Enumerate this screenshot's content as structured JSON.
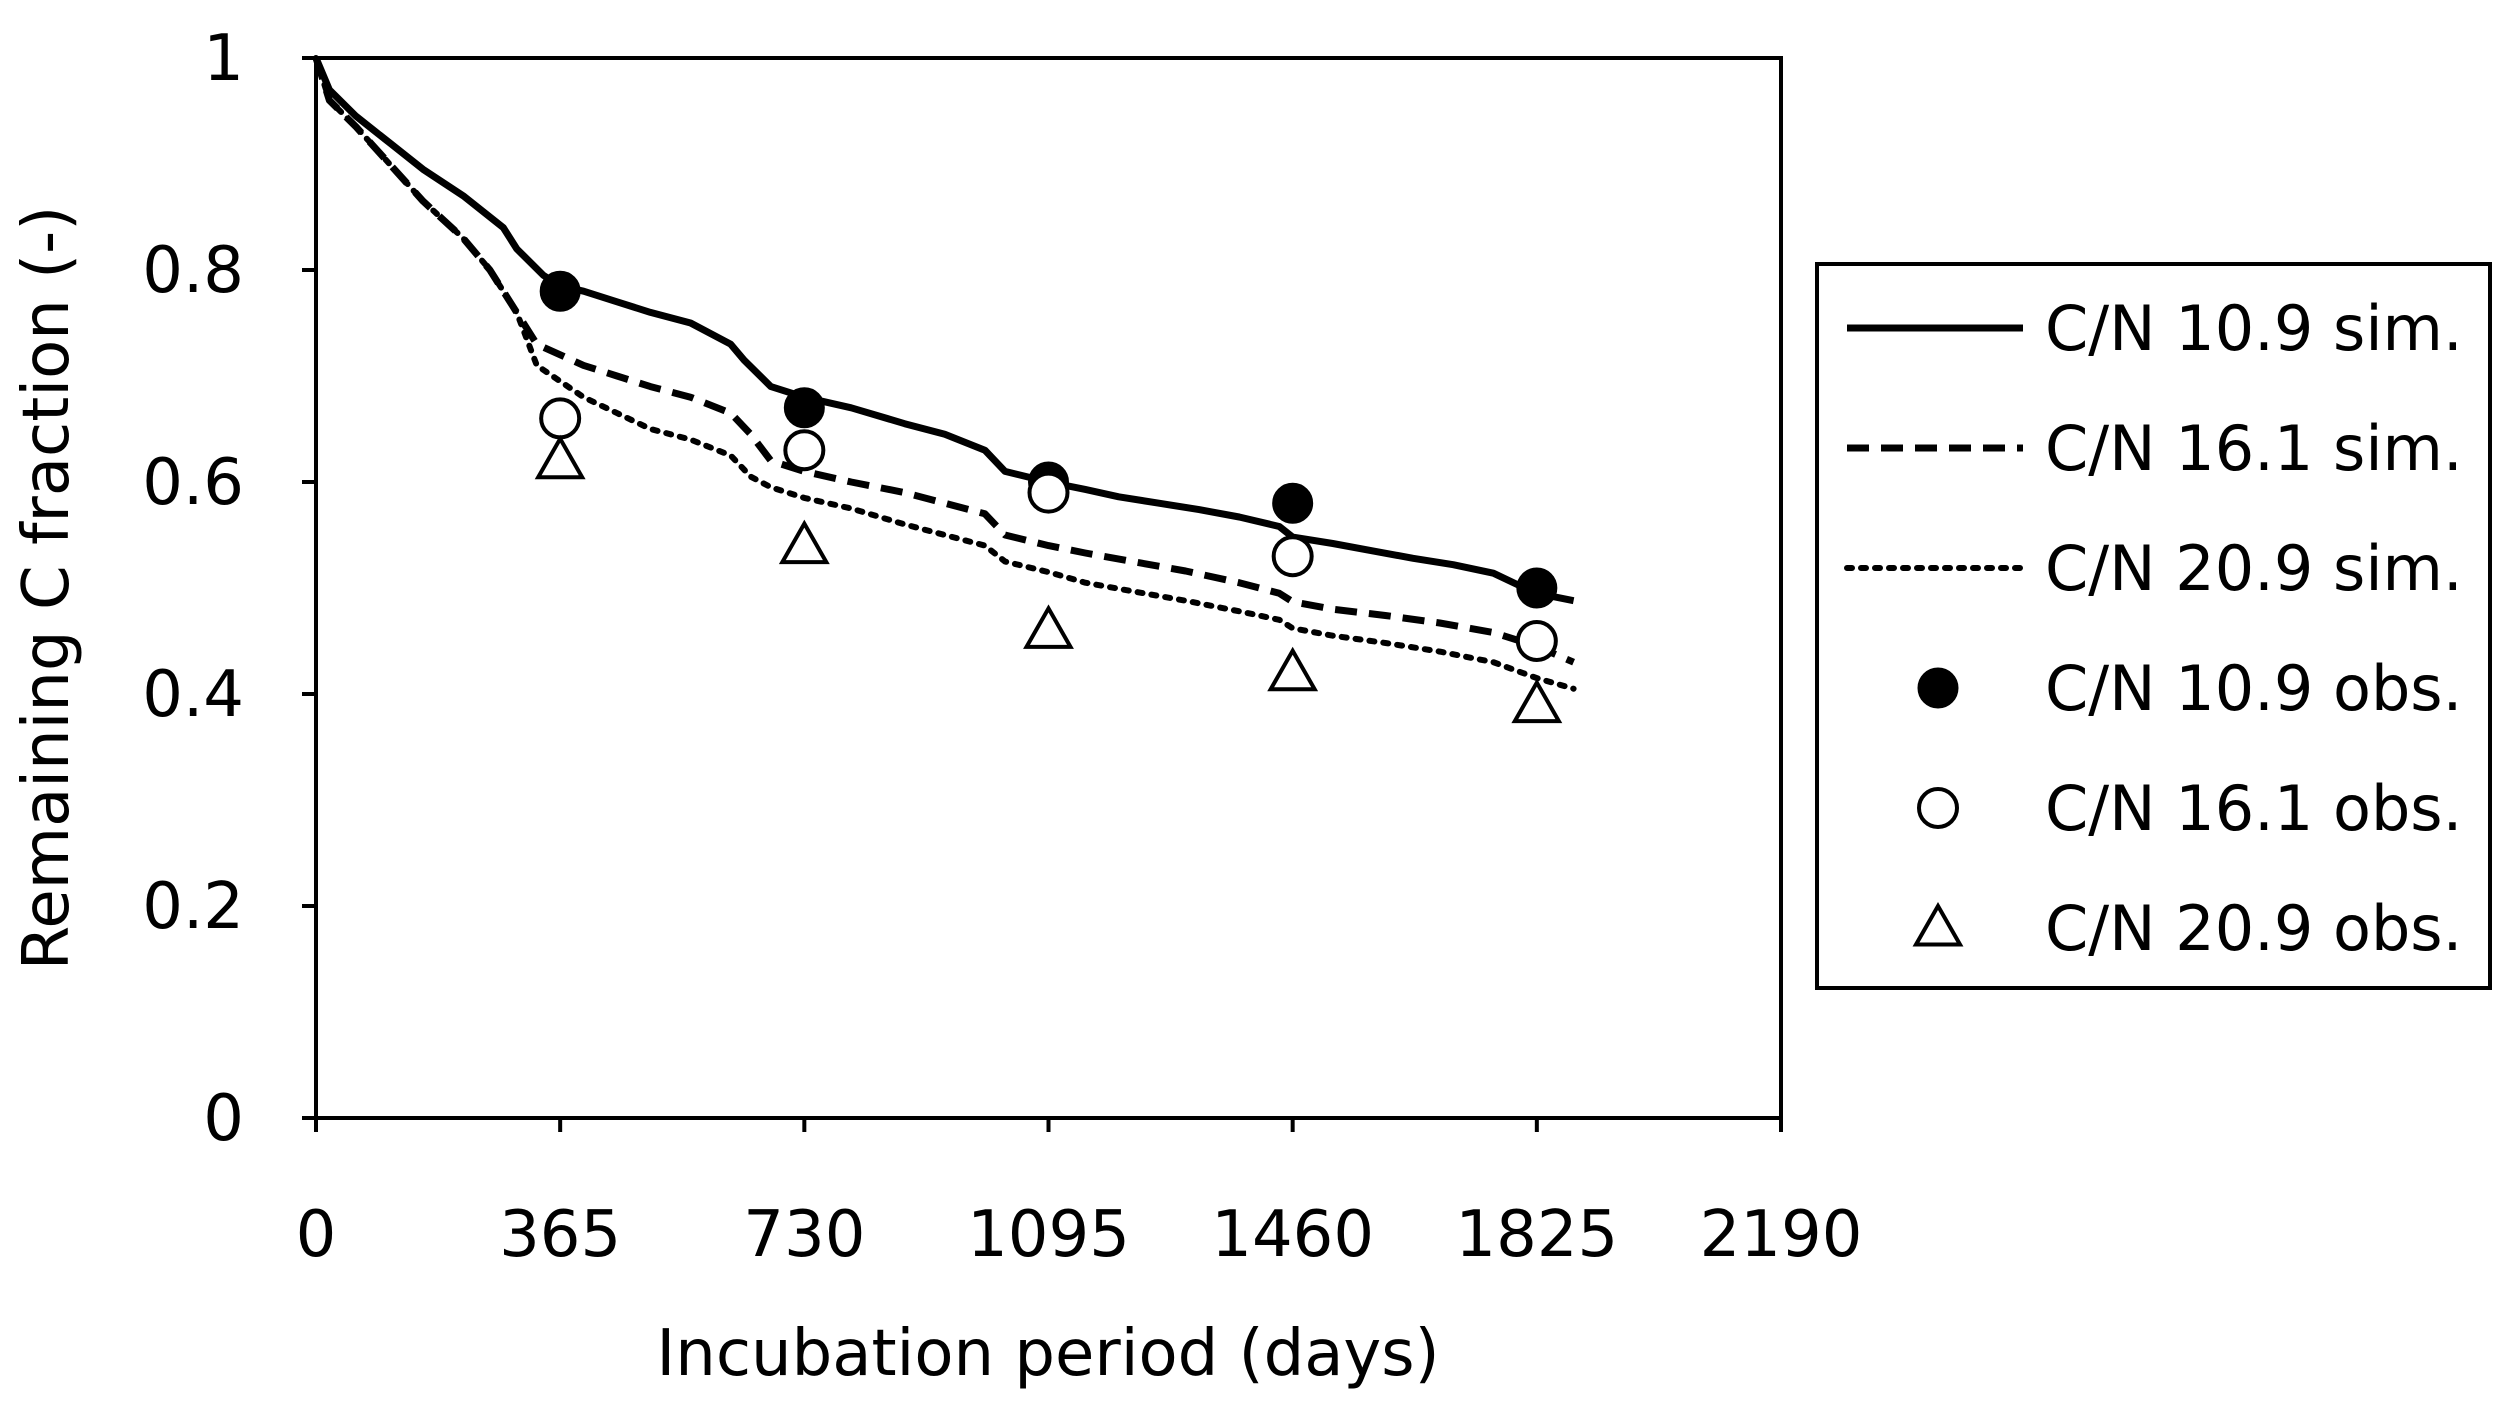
{
  "chart_data": {
    "type": "line",
    "title": "",
    "xlabel": "Incubation period (days)",
    "ylabel": "Remaining C fraction (-)",
    "xlim": [
      0,
      2190
    ],
    "ylim": [
      0,
      1
    ],
    "x_ticks": [
      "0",
      "365",
      "730",
      "1095",
      "1460",
      "1825",
      "2190"
    ],
    "y_ticks": [
      "0",
      "0.2",
      "0.4",
      "0.6",
      "0.8",
      "1"
    ],
    "grid": false,
    "legend_position": "right",
    "series": [
      {
        "name": "C/N 10.9 sim.",
        "kind": "line",
        "style": "solid",
        "x": [
          0,
          20,
          60,
          110,
          160,
          220,
          280,
          300,
          340,
          365,
          400,
          450,
          500,
          560,
          620,
          640,
          680,
          730,
          800,
          880,
          940,
          1000,
          1030,
          1095,
          1150,
          1200,
          1260,
          1320,
          1380,
          1440,
          1460,
          1520,
          1580,
          1640,
          1700,
          1760,
          1800,
          1825,
          1880
        ],
        "y": [
          1.0,
          0.97,
          0.945,
          0.92,
          0.895,
          0.87,
          0.84,
          0.82,
          0.795,
          0.785,
          0.78,
          0.77,
          0.76,
          0.75,
          0.73,
          0.715,
          0.69,
          0.68,
          0.67,
          0.655,
          0.645,
          0.63,
          0.61,
          0.6,
          0.593,
          0.586,
          0.58,
          0.574,
          0.567,
          0.558,
          0.548,
          0.542,
          0.535,
          0.528,
          0.522,
          0.514,
          0.502,
          0.495,
          0.488
        ]
      },
      {
        "name": "C/N 16.1 sim.",
        "kind": "line",
        "style": "dashed",
        "x": [
          0,
          20,
          60,
          110,
          160,
          220,
          260,
          300,
          330,
          365,
          400,
          450,
          500,
          560,
          620,
          650,
          680,
          730,
          800,
          880,
          940,
          1000,
          1030,
          1095,
          1150,
          1220,
          1300,
          1380,
          1440,
          1460,
          1520,
          1600,
          1680,
          1760,
          1825,
          1880
        ],
        "y": [
          1.0,
          0.96,
          0.935,
          0.9,
          0.865,
          0.83,
          0.8,
          0.76,
          0.73,
          0.72,
          0.71,
          0.7,
          0.69,
          0.68,
          0.665,
          0.645,
          0.62,
          0.61,
          0.6,
          0.59,
          0.58,
          0.57,
          0.55,
          0.54,
          0.533,
          0.525,
          0.516,
          0.505,
          0.495,
          0.487,
          0.48,
          0.474,
          0.467,
          0.458,
          0.445,
          0.43
        ]
      },
      {
        "name": "C/N 20.9 sim.",
        "kind": "line",
        "style": "dotted",
        "x": [
          0,
          20,
          60,
          110,
          160,
          220,
          260,
          300,
          330,
          365,
          400,
          450,
          500,
          560,
          620,
          650,
          680,
          730,
          800,
          880,
          940,
          1000,
          1030,
          1095,
          1150,
          1220,
          1300,
          1380,
          1440,
          1460,
          1520,
          1600,
          1680,
          1760,
          1825,
          1880
        ],
        "y": [
          1.0,
          0.96,
          0.935,
          0.9,
          0.865,
          0.83,
          0.8,
          0.76,
          0.71,
          0.695,
          0.68,
          0.665,
          0.65,
          0.64,
          0.625,
          0.605,
          0.595,
          0.585,
          0.575,
          0.56,
          0.55,
          0.54,
          0.525,
          0.515,
          0.505,
          0.497,
          0.488,
          0.478,
          0.47,
          0.462,
          0.455,
          0.448,
          0.44,
          0.43,
          0.415,
          0.405
        ]
      },
      {
        "name": "C/N 10.9 obs.",
        "kind": "marker",
        "marker": "filled-circle",
        "x": [
          365,
          730,
          1095,
          1460,
          1825
        ],
        "y": [
          0.78,
          0.67,
          0.6,
          0.58,
          0.5
        ]
      },
      {
        "name": "C/N 16.1 obs.",
        "kind": "marker",
        "marker": "open-circle",
        "x": [
          365,
          730,
          1095,
          1460,
          1825
        ],
        "y": [
          0.66,
          0.63,
          0.59,
          0.53,
          0.45
        ]
      },
      {
        "name": "C/N 20.9 obs.",
        "kind": "marker",
        "marker": "open-triangle",
        "x": [
          365,
          730,
          1095,
          1460,
          1825
        ],
        "y": [
          0.62,
          0.54,
          0.46,
          0.42,
          0.39
        ]
      }
    ]
  }
}
